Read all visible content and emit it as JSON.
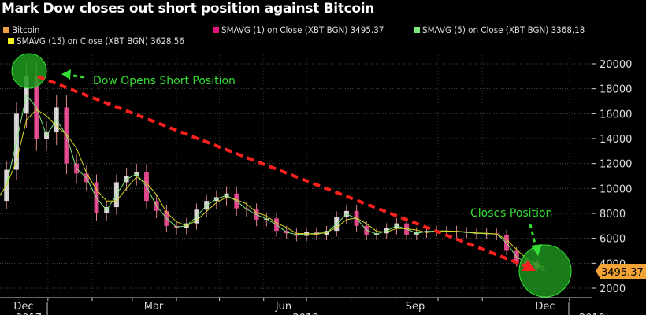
{
  "title": "Mark Dow closes out short position against Bitcoin",
  "legend": [
    {
      "label": "Bitcoin",
      "color": "#f0a040"
    },
    {
      "label": "SMAVG (1)  on Close (XBT BGN) 3495.37",
      "color": "#e0157f"
    },
    {
      "label": "SMAVG (5)  on Close (XBT BGN) 3368.18",
      "color": "#7de87d"
    },
    {
      "label": "SMAVG (15)  on Close (XBT BGN) 3628.56",
      "color": "#f0f020"
    }
  ],
  "chart_data": {
    "type": "candlestick-line",
    "title": "Mark Dow closes out short position against Bitcoin",
    "x_tick_labels": [
      "Dec",
      "Mar",
      "Jun",
      "Sep",
      "Dec"
    ],
    "x_year_labels": [
      "2017",
      "2018",
      "2019"
    ],
    "y_tick_labels": [
      "2000",
      "4000",
      "6000",
      "8000",
      "10000",
      "12000",
      "14000",
      "16000",
      "18000",
      "20000"
    ],
    "ylim": [
      2000,
      20000
    ],
    "y_axis_side": "right",
    "grid": true,
    "last_price_label": "3495.37",
    "series": [
      {
        "name": "Bitcoin",
        "weeks": [
          "2017-11-26",
          "2017-12-03",
          "2017-12-10",
          "2017-12-17",
          "2017-12-24",
          "2017-12-31",
          "2018-01-07",
          "2018-01-14",
          "2018-01-21",
          "2018-01-28",
          "2018-02-04",
          "2018-02-11",
          "2018-02-18",
          "2018-02-25",
          "2018-03-04",
          "2018-03-11",
          "2018-03-18",
          "2018-03-25",
          "2018-04-01",
          "2018-04-08",
          "2018-04-15",
          "2018-04-22",
          "2018-04-29",
          "2018-05-06",
          "2018-05-13",
          "2018-05-20",
          "2018-05-27",
          "2018-06-03",
          "2018-06-10",
          "2018-06-17",
          "2018-06-24",
          "2018-07-01",
          "2018-07-08",
          "2018-07-15",
          "2018-07-22",
          "2018-07-29",
          "2018-08-05",
          "2018-08-12",
          "2018-08-19",
          "2018-08-26",
          "2018-09-02",
          "2018-09-09",
          "2018-09-16",
          "2018-09-23",
          "2018-09-30",
          "2018-10-07",
          "2018-10-14",
          "2018-10-21",
          "2018-10-28",
          "2018-11-04",
          "2018-11-11",
          "2018-11-18",
          "2018-11-25",
          "2018-12-02",
          "2018-12-09",
          "2018-12-14"
        ],
        "close": [
          9000,
          11500,
          16000,
          19000,
          14000,
          14500,
          16500,
          12000,
          11200,
          10500,
          8000,
          8500,
          10500,
          11000,
          11300,
          9000,
          8200,
          7000,
          6800,
          7200,
          8300,
          9000,
          9300,
          9600,
          8400,
          8300,
          7500,
          7600,
          6600,
          6400,
          6200,
          6500,
          6300,
          6600,
          7700,
          8200,
          7000,
          6300,
          6400,
          6800,
          7200,
          6300,
          6500,
          6600,
          6600,
          6600,
          6500,
          6450,
          6350,
          6400,
          6300,
          5000,
          4000,
          4100,
          3500,
          3495.37
        ]
      }
    ],
    "annotations": [
      {
        "text": "Dow Opens Short Position",
        "color": "#33dd33"
      },
      {
        "text": "Closes Position",
        "color": "#33dd33"
      }
    ]
  }
}
